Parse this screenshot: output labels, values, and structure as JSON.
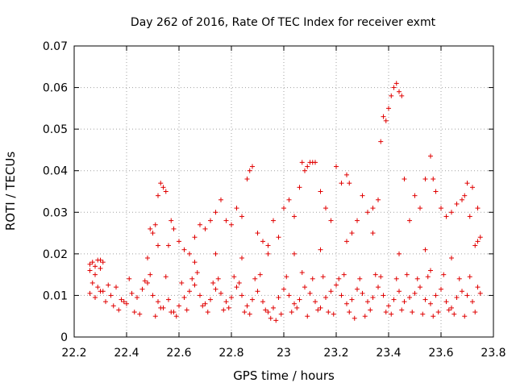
{
  "chart_data": {
    "type": "scatter",
    "title": "Day 262 of 2016, Rate Of TEC Index for receiver exmt",
    "xlabel": "GPS time / hours",
    "ylabel": "ROTI / TECUs",
    "xlim": [
      22.2,
      23.8
    ],
    "ylim": [
      0,
      0.07
    ],
    "xticks": [
      "22.2",
      "22.4",
      "22.6",
      "22.8",
      "23",
      "23.2",
      "23.4",
      "23.6",
      "23.8"
    ],
    "yticks": [
      "0",
      "0.01",
      "0.02",
      "0.03",
      "0.04",
      "0.05",
      "0.06",
      "0.07"
    ],
    "grid": true,
    "marker": "+",
    "marker_color": "#e00000",
    "series": [
      {
        "name": "ROTI",
        "x": [
          22.26,
          22.27,
          22.28,
          22.29,
          22.3,
          22.31,
          22.26,
          22.28,
          22.3,
          22.32,
          22.34,
          22.36,
          22.38,
          22.4,
          22.42,
          22.44,
          22.46,
          22.48,
          22.5,
          22.52,
          22.54,
          22.56,
          22.58,
          22.6,
          22.62,
          22.64,
          22.66,
          22.68,
          22.7,
          22.72,
          22.74,
          22.76,
          22.78,
          22.8,
          22.82,
          22.84,
          22.86,
          22.88,
          22.9,
          22.92,
          22.94,
          22.96,
          22.98,
          23.0,
          23.02,
          23.04,
          23.06,
          23.08,
          23.1,
          23.12,
          23.14,
          23.16,
          23.18,
          23.2,
          23.22,
          23.24,
          23.26,
          23.28,
          23.3,
          23.32,
          23.34,
          23.36,
          23.38,
          23.4,
          23.42,
          23.44,
          23.46,
          23.48,
          23.5,
          23.52,
          23.54,
          23.56,
          23.58,
          23.6,
          23.62,
          23.64,
          23.66,
          23.68,
          23.7,
          23.72,
          23.74,
          23.75,
          22.27,
          22.29,
          22.31,
          22.33,
          22.35,
          22.37,
          22.39,
          22.41,
          22.43,
          22.45,
          22.47,
          22.49,
          22.51,
          22.53,
          22.55,
          22.57,
          22.59,
          22.61,
          22.63,
          22.65,
          22.67,
          22.69,
          22.71,
          22.73,
          22.75,
          22.77,
          22.79,
          22.81,
          22.83,
          22.85,
          22.87,
          22.89,
          22.91,
          22.93,
          22.95,
          22.97,
          22.99,
          23.01,
          23.03,
          23.05,
          23.07,
          23.09,
          23.11,
          23.13,
          23.15,
          23.17,
          23.19,
          23.21,
          23.23,
          23.25,
          23.27,
          23.29,
          23.31,
          23.33,
          23.35,
          23.37,
          23.39,
          23.41,
          23.43,
          23.45,
          23.47,
          23.49,
          23.51,
          23.53,
          23.55,
          23.57,
          23.59,
          23.61,
          23.63,
          23.65,
          23.67,
          23.69,
          23.71,
          23.73,
          22.5,
          22.51,
          22.52,
          22.53,
          22.54,
          22.55,
          22.56,
          22.57,
          22.48,
          22.49,
          22.6,
          22.62,
          22.64,
          22.66,
          22.68,
          22.7,
          22.72,
          22.74,
          22.76,
          22.78,
          22.8,
          22.82,
          22.84,
          22.86,
          22.87,
          22.88,
          22.9,
          22.92,
          22.94,
          22.96,
          22.98,
          23.0,
          23.02,
          23.04,
          23.06,
          23.07,
          23.08,
          23.09,
          23.1,
          23.11,
          23.12,
          23.14,
          23.16,
          23.18,
          23.2,
          23.22,
          23.24,
          23.25,
          23.26,
          23.28,
          23.3,
          23.32,
          23.34,
          23.36,
          23.38,
          23.39,
          23.4,
          23.41,
          23.42,
          23.43,
          23.44,
          23.45,
          23.46,
          23.48,
          23.5,
          23.52,
          23.54,
          23.56,
          23.57,
          23.58,
          23.6,
          23.62,
          23.64,
          23.66,
          23.68,
          23.7,
          23.72,
          23.74,
          23.75,
          23.73,
          23.71,
          23.69,
          22.26,
          22.28,
          22.3,
          22.52,
          22.58,
          22.66,
          22.74,
          22.84,
          22.94,
          23.04,
          23.14,
          23.24,
          23.34,
          23.44,
          23.54,
          23.64,
          23.74,
          23.56,
          23.37
        ],
        "y": [
          0.0175,
          0.018,
          0.017,
          0.0185,
          0.0165,
          0.018,
          0.0105,
          0.0095,
          0.011,
          0.0085,
          0.01,
          0.012,
          0.009,
          0.008,
          0.0105,
          0.0095,
          0.0115,
          0.013,
          0.01,
          0.0085,
          0.007,
          0.009,
          0.006,
          0.0075,
          0.0095,
          0.011,
          0.0125,
          0.01,
          0.008,
          0.009,
          0.0115,
          0.0105,
          0.0085,
          0.0095,
          0.012,
          0.01,
          0.0075,
          0.009,
          0.011,
          0.0085,
          0.006,
          0.007,
          0.0095,
          0.0115,
          0.01,
          0.008,
          0.009,
          0.012,
          0.0105,
          0.0085,
          0.007,
          0.0095,
          0.011,
          0.0125,
          0.01,
          0.008,
          0.009,
          0.0115,
          0.0105,
          0.0085,
          0.0095,
          0.012,
          0.01,
          0.0075,
          0.009,
          0.011,
          0.0085,
          0.0095,
          0.0105,
          0.012,
          0.009,
          0.008,
          0.01,
          0.0115,
          0.0085,
          0.007,
          0.0095,
          0.011,
          0.01,
          0.0085,
          0.012,
          0.0105,
          0.013,
          0.012,
          0.011,
          0.0125,
          0.0075,
          0.0065,
          0.0085,
          0.014,
          0.006,
          0.0055,
          0.0135,
          0.015,
          0.005,
          0.007,
          0.0145,
          0.006,
          0.005,
          0.013,
          0.0065,
          0.014,
          0.0155,
          0.0075,
          0.006,
          0.013,
          0.014,
          0.0065,
          0.007,
          0.0145,
          0.013,
          0.006,
          0.0055,
          0.014,
          0.015,
          0.0065,
          0.0045,
          0.004,
          0.0055,
          0.0145,
          0.006,
          0.007,
          0.0155,
          0.005,
          0.014,
          0.0065,
          0.0145,
          0.006,
          0.0055,
          0.014,
          0.015,
          0.006,
          0.0045,
          0.014,
          0.005,
          0.0065,
          0.015,
          0.0145,
          0.006,
          0.0055,
          0.014,
          0.0065,
          0.015,
          0.006,
          0.014,
          0.0055,
          0.0145,
          0.005,
          0.006,
          0.015,
          0.0065,
          0.0055,
          0.014,
          0.005,
          0.0145,
          0.006,
          0.025,
          0.027,
          0.034,
          0.037,
          0.036,
          0.035,
          0.022,
          0.028,
          0.019,
          0.026,
          0.023,
          0.021,
          0.02,
          0.024,
          0.027,
          0.026,
          0.028,
          0.03,
          0.033,
          0.028,
          0.027,
          0.031,
          0.029,
          0.038,
          0.04,
          0.041,
          0.025,
          0.023,
          0.02,
          0.028,
          0.024,
          0.031,
          0.033,
          0.029,
          0.036,
          0.042,
          0.04,
          0.041,
          0.042,
          0.042,
          0.042,
          0.035,
          0.031,
          0.028,
          0.041,
          0.037,
          0.039,
          0.037,
          0.025,
          0.028,
          0.034,
          0.03,
          0.031,
          0.033,
          0.053,
          0.052,
          0.055,
          0.058,
          0.06,
          0.061,
          0.059,
          0.058,
          0.038,
          0.028,
          0.034,
          0.031,
          0.038,
          0.0435,
          0.038,
          0.035,
          0.031,
          0.029,
          0.03,
          0.032,
          0.033,
          0.037,
          0.036,
          0.031,
          0.024,
          0.022,
          0.029,
          0.034,
          0.016,
          0.015,
          0.0185,
          0.022,
          0.026,
          0.018,
          0.02,
          0.019,
          0.022,
          0.02,
          0.021,
          0.023,
          0.025,
          0.02,
          0.021,
          0.019,
          0.023,
          0.016,
          0.047
        ]
      }
    ]
  }
}
